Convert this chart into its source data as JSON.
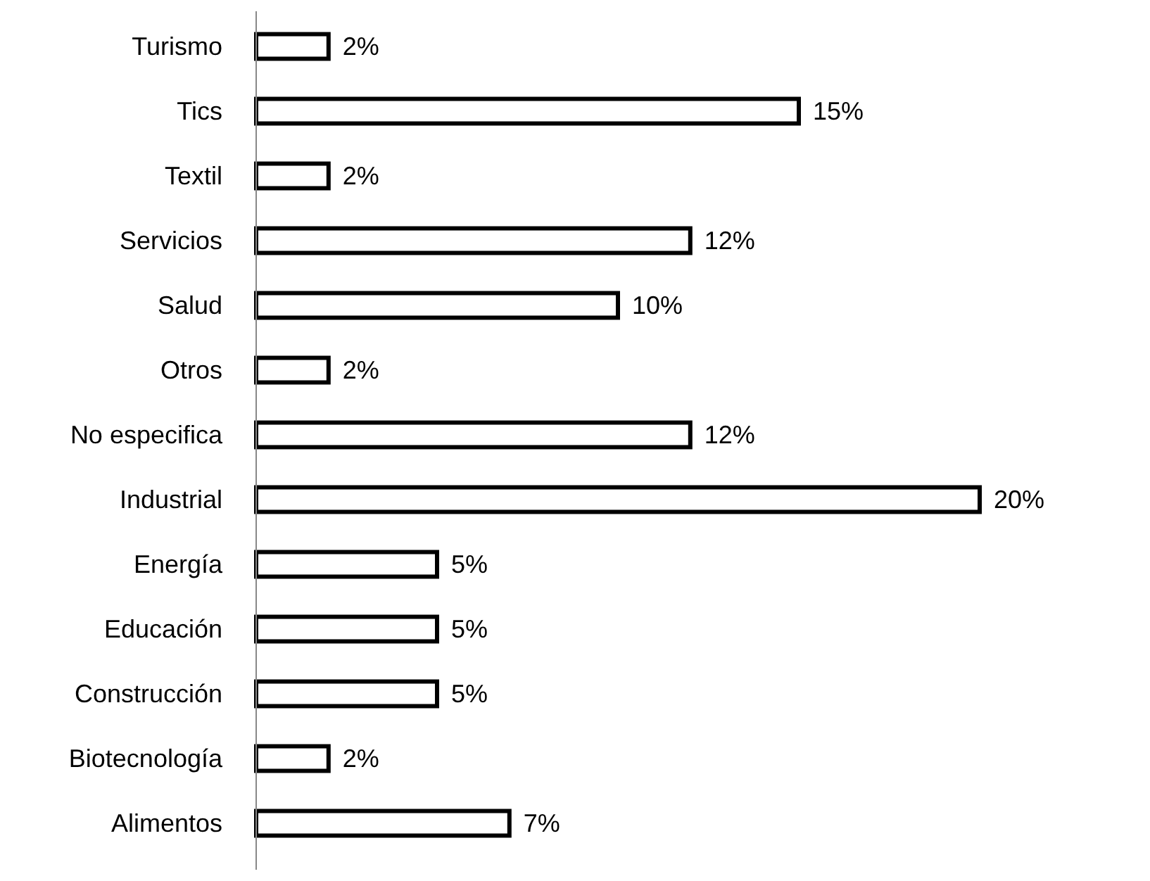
{
  "chart_data": {
    "type": "bar",
    "orientation": "horizontal",
    "categories": [
      "Turismo",
      "Tics",
      "Textil",
      "Servicios",
      "Salud",
      "Otros",
      "No especifica",
      "Industrial",
      "Energía",
      "Educación",
      "Construcción",
      "Biotecnología",
      "Alimentos"
    ],
    "values": [
      2,
      15,
      2,
      12,
      10,
      2,
      12,
      20,
      5,
      5,
      5,
      2,
      7
    ],
    "value_labels": [
      "2%",
      "15%",
      "2%",
      "12%",
      "10%",
      "2%",
      "12%",
      "20%",
      "5%",
      "5%",
      "5%",
      "2%",
      "7%"
    ],
    "color": "#ffffff",
    "tick_labels": "y"
  }
}
